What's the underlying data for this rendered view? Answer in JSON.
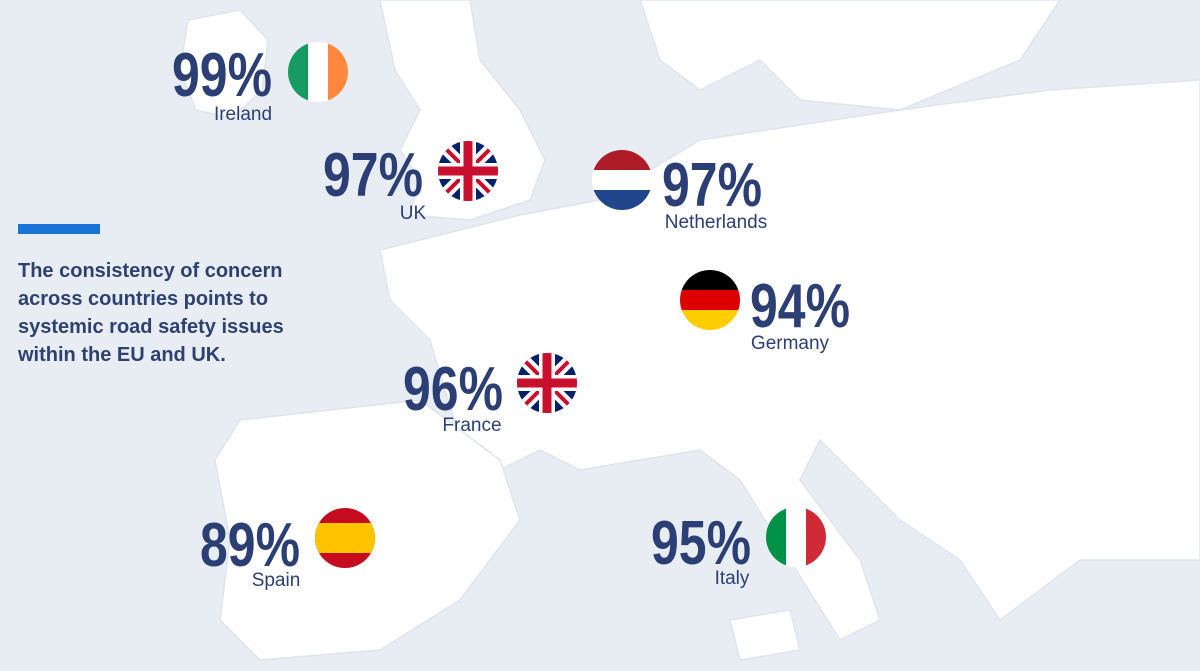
{
  "note": {
    "lines": [
      "The consistency of concern",
      "across countries points to",
      "systemic road safety issues",
      "within the EU and UK."
    ]
  },
  "countries": [
    {
      "value": "99%",
      "name": "Ireland"
    },
    {
      "value": "97%",
      "name": "UK"
    },
    {
      "value": "97%",
      "name": "Netherlands"
    },
    {
      "value": "94%",
      "name": "Germany"
    },
    {
      "value": "96%",
      "name": "France"
    },
    {
      "value": "89%",
      "name": "Spain"
    },
    {
      "value": "95%",
      "name": "Italy"
    }
  ]
}
